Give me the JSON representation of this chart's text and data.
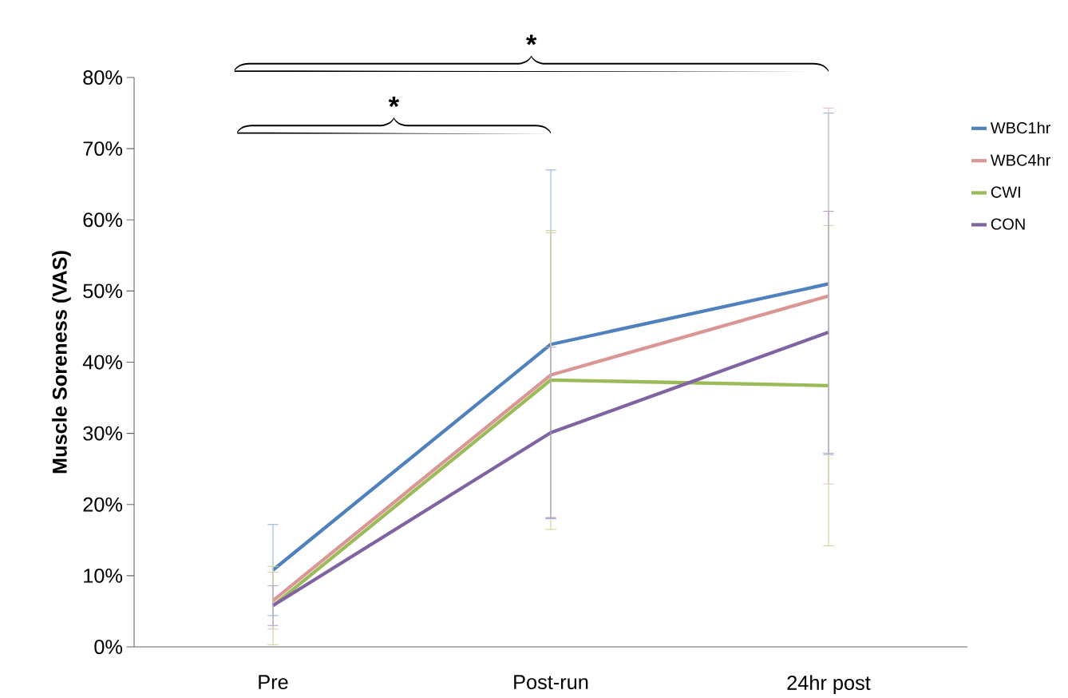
{
  "chart_data": {
    "type": "line",
    "ylabel": "Muscle Soreness (VAS)",
    "categories": [
      "Pre",
      "Post-run",
      "24hr post"
    ],
    "series": [
      {
        "name": "WBC1hr",
        "color": "#4f81bd",
        "values": [
          10.8,
          42.5,
          51.0
        ],
        "errors": [
          6.4,
          24.5,
          24.0
        ]
      },
      {
        "name": "WBC4hr",
        "color": "#d99694",
        "values": [
          6.5,
          38.2,
          49.3
        ],
        "errors": [
          4.0,
          20.0,
          26.4
        ]
      },
      {
        "name": "CWI",
        "color": "#9bbb59",
        "values": [
          5.8,
          37.5,
          36.7
        ],
        "errors": [
          5.5,
          21.0,
          22.5
        ]
      },
      {
        "name": "CON",
        "color": "#8064a2",
        "values": [
          5.8,
          30.1,
          44.2
        ],
        "errors": [
          2.8,
          12.0,
          17.0
        ]
      }
    ],
    "ylim": [
      0,
      80
    ],
    "yticks": [
      {
        "value": 0,
        "label": "0%"
      },
      {
        "value": 10,
        "label": "10%"
      },
      {
        "value": 20,
        "label": "20%"
      },
      {
        "value": 30,
        "label": "30%"
      },
      {
        "value": 40,
        "label": "40%"
      },
      {
        "value": 50,
        "label": "50%"
      },
      {
        "value": 60,
        "label": "60%"
      },
      {
        "value": 70,
        "label": "70%"
      },
      {
        "value": 80,
        "label": "80%"
      }
    ],
    "annotations": [
      "*",
      "*"
    ],
    "legend": "right",
    "grid": false,
    "marker": "none",
    "line_style": "solid"
  }
}
